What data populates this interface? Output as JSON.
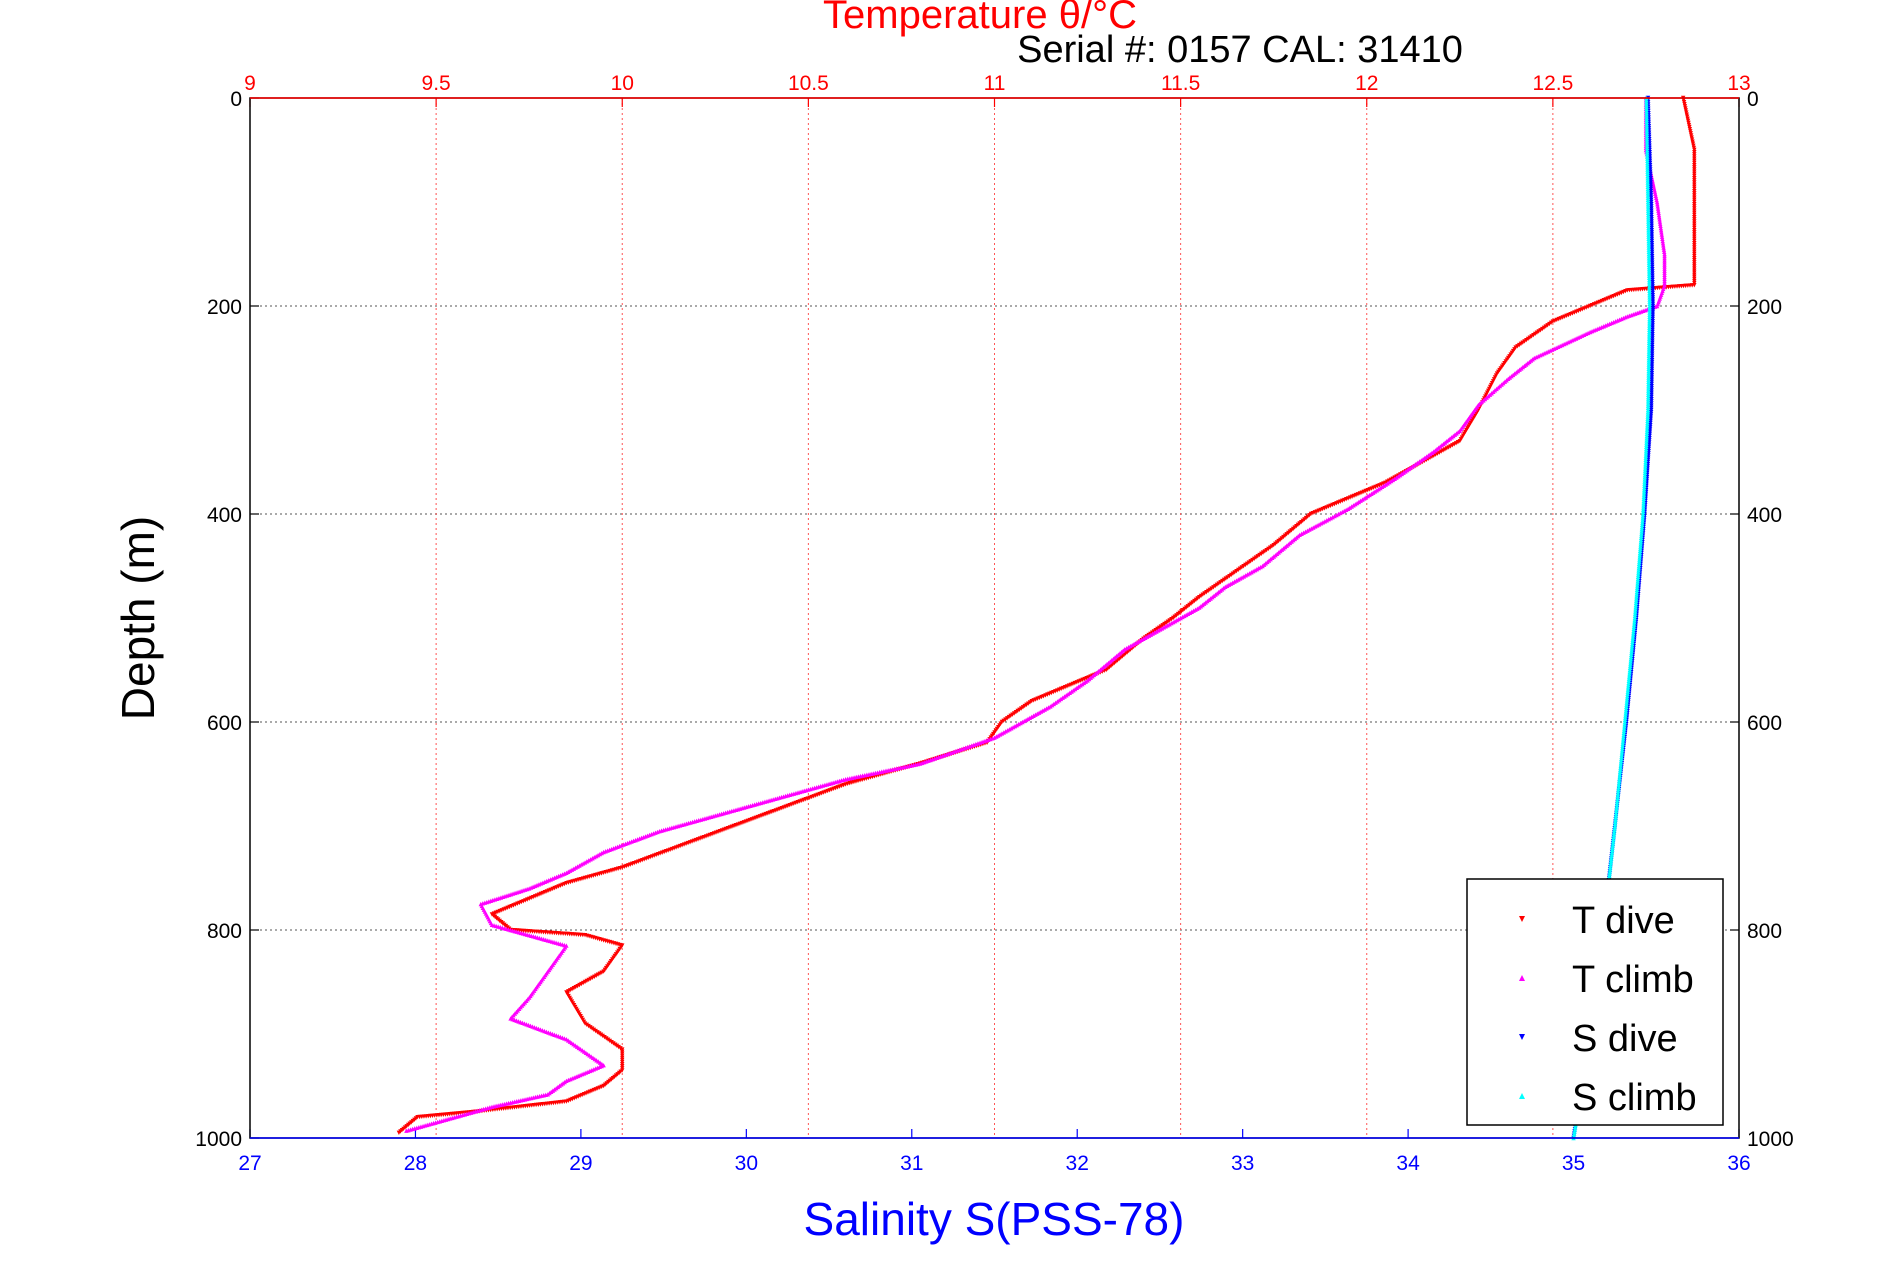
{
  "serial_label": "Serial #: 0157  CAL: 31410",
  "chart_data": {
    "type": "scatter",
    "title": "Temperature θ/°C",
    "xlabel": "Salinity S(PSS-78)",
    "ylabel": "Depth (m)",
    "y_axis": {
      "range": [
        0,
        1000
      ],
      "reversed": true,
      "ticks": [
        0,
        200,
        400,
        600,
        800,
        1000
      ],
      "labels_both_sides": true
    },
    "x_top": {
      "name": "Temperature θ/°C",
      "range": [
        9,
        13
      ],
      "ticks": [
        9,
        9.5,
        10,
        10.5,
        11,
        11.5,
        12,
        12.5,
        13
      ],
      "color": "#ff0000",
      "grid": "dotted"
    },
    "x_bottom": {
      "name": "Salinity S(PSS-78)",
      "range": [
        27,
        36
      ],
      "ticks": [
        27,
        28,
        29,
        30,
        31,
        32,
        33,
        34,
        35,
        36
      ],
      "color": "#0000ff"
    },
    "grid": true,
    "legend": {
      "position": "bottom-right",
      "entries": [
        "T dive",
        "T climb",
        "S dive",
        "S climb"
      ]
    },
    "series": [
      {
        "name": "T dive",
        "axis": "temperature",
        "color": "#ff0000",
        "marker": "triangle-down",
        "points": [
          [
            12.85,
            0
          ],
          [
            12.88,
            50
          ],
          [
            12.88,
            100
          ],
          [
            12.88,
            150
          ],
          [
            12.88,
            180
          ],
          [
            12.7,
            185
          ],
          [
            12.6,
            200
          ],
          [
            12.5,
            215
          ],
          [
            12.4,
            240
          ],
          [
            12.35,
            265
          ],
          [
            12.3,
            300
          ],
          [
            12.25,
            330
          ],
          [
            12.15,
            350
          ],
          [
            12.05,
            370
          ],
          [
            11.95,
            385
          ],
          [
            11.85,
            400
          ],
          [
            11.75,
            430
          ],
          [
            11.65,
            455
          ],
          [
            11.55,
            480
          ],
          [
            11.48,
            500
          ],
          [
            11.4,
            520
          ],
          [
            11.3,
            550
          ],
          [
            11.2,
            565
          ],
          [
            11.1,
            580
          ],
          [
            11.02,
            600
          ],
          [
            10.98,
            620
          ],
          [
            10.8,
            640
          ],
          [
            10.6,
            660
          ],
          [
            10.45,
            680
          ],
          [
            10.3,
            700
          ],
          [
            10.15,
            720
          ],
          [
            10.0,
            740
          ],
          [
            9.85,
            755
          ],
          [
            9.75,
            770
          ],
          [
            9.65,
            785
          ],
          [
            9.7,
            800
          ],
          [
            9.9,
            805
          ],
          [
            10.0,
            815
          ],
          [
            9.95,
            840
          ],
          [
            9.85,
            860
          ],
          [
            9.9,
            890
          ],
          [
            10.0,
            915
          ],
          [
            10.0,
            935
          ],
          [
            9.95,
            950
          ],
          [
            9.85,
            965
          ],
          [
            9.6,
            975
          ],
          [
            9.45,
            980
          ],
          [
            9.4,
            995
          ]
        ]
      },
      {
        "name": "T climb",
        "axis": "temperature",
        "color": "#ff00ff",
        "marker": "triangle-up",
        "points": [
          [
            12.75,
            0
          ],
          [
            12.75,
            50
          ],
          [
            12.78,
            100
          ],
          [
            12.8,
            150
          ],
          [
            12.8,
            180
          ],
          [
            12.78,
            200
          ],
          [
            12.7,
            210
          ],
          [
            12.6,
            225
          ],
          [
            12.45,
            250
          ],
          [
            12.38,
            270
          ],
          [
            12.3,
            295
          ],
          [
            12.25,
            320
          ],
          [
            12.18,
            340
          ],
          [
            12.08,
            365
          ],
          [
            11.95,
            395
          ],
          [
            11.82,
            420
          ],
          [
            11.72,
            450
          ],
          [
            11.62,
            470
          ],
          [
            11.55,
            490
          ],
          [
            11.45,
            510
          ],
          [
            11.35,
            530
          ],
          [
            11.25,
            560
          ],
          [
            11.15,
            585
          ],
          [
            11.0,
            615
          ],
          [
            10.8,
            640
          ],
          [
            10.6,
            655
          ],
          [
            10.45,
            670
          ],
          [
            10.3,
            685
          ],
          [
            10.1,
            705
          ],
          [
            9.95,
            725
          ],
          [
            9.85,
            745
          ],
          [
            9.75,
            760
          ],
          [
            9.62,
            775
          ],
          [
            9.65,
            795
          ],
          [
            9.85,
            815
          ],
          [
            9.8,
            840
          ],
          [
            9.75,
            865
          ],
          [
            9.7,
            885
          ],
          [
            9.85,
            905
          ],
          [
            9.95,
            930
          ],
          [
            9.85,
            945
          ],
          [
            9.8,
            958
          ],
          [
            9.65,
            970
          ],
          [
            9.42,
            993
          ]
        ]
      },
      {
        "name": "S dive",
        "axis": "salinity",
        "color": "#0000ff",
        "marker": "triangle-down",
        "points": [
          [
            35.45,
            0
          ],
          [
            35.47,
            100
          ],
          [
            35.48,
            200
          ],
          [
            35.47,
            300
          ],
          [
            35.43,
            400
          ],
          [
            35.38,
            500
          ],
          [
            35.32,
            600
          ],
          [
            35.25,
            700
          ],
          [
            35.18,
            800
          ],
          [
            35.1,
            900
          ],
          [
            35.0,
            1000
          ]
        ]
      },
      {
        "name": "S climb",
        "axis": "salinity",
        "color": "#00ffff",
        "marker": "triangle-up",
        "points": [
          [
            35.44,
            0
          ],
          [
            35.45,
            100
          ],
          [
            35.46,
            200
          ],
          [
            35.45,
            300
          ],
          [
            35.42,
            400
          ],
          [
            35.37,
            500
          ],
          [
            35.31,
            600
          ],
          [
            35.25,
            700
          ],
          [
            35.18,
            800
          ],
          [
            35.1,
            900
          ],
          [
            35.0,
            1000
          ]
        ]
      }
    ]
  }
}
